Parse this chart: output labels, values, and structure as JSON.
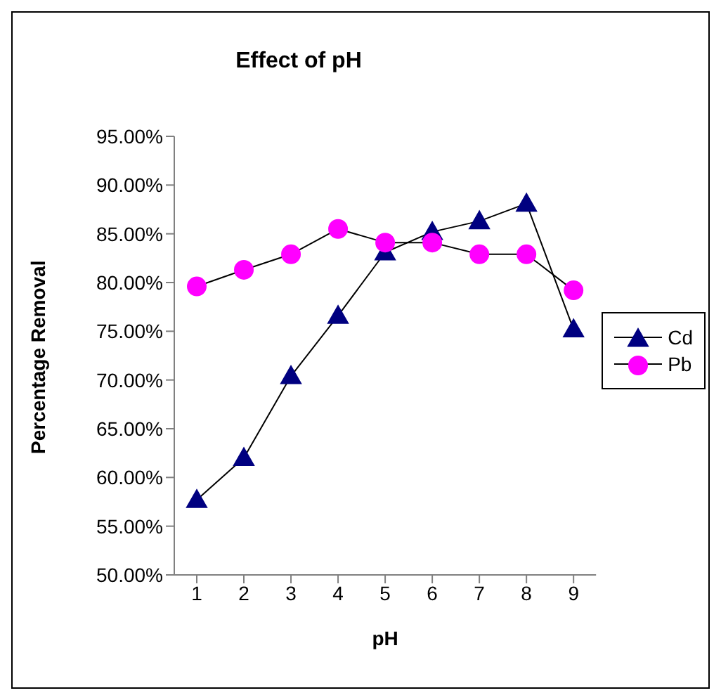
{
  "chart_data": {
    "type": "line",
    "title": "Effect of pH",
    "xlabel": "pH",
    "ylabel": "Percentage Removal",
    "categories": [
      "1",
      "2",
      "3",
      "4",
      "5",
      "6",
      "7",
      "8",
      "9"
    ],
    "series": [
      {
        "name": "Cd",
        "color": "#000080",
        "marker": "triangle",
        "values": [
          57.7,
          62.0,
          70.4,
          76.6,
          83.1,
          85.2,
          86.3,
          88.1,
          75.2
        ]
      },
      {
        "name": "Pb",
        "color": "#ff00ff",
        "marker": "circle",
        "values": [
          79.6,
          81.3,
          82.9,
          85.5,
          84.1,
          84.1,
          82.9,
          82.9,
          79.2
        ]
      }
    ],
    "ylim": [
      50,
      95
    ],
    "yticks": [
      {
        "value": 50,
        "label": "50.00%"
      },
      {
        "value": 55,
        "label": "55.00%"
      },
      {
        "value": 60,
        "label": "60.00%"
      },
      {
        "value": 65,
        "label": "65.00%"
      },
      {
        "value": 70,
        "label": "70.00%"
      },
      {
        "value": 75,
        "label": "75.00%"
      },
      {
        "value": 80,
        "label": "80.00%"
      },
      {
        "value": 85,
        "label": "85.00%"
      },
      {
        "value": 90,
        "label": "90.00%"
      },
      {
        "value": 95,
        "label": "95.00%"
      }
    ],
    "grid": false,
    "legend": "right",
    "line_style": "solid"
  }
}
